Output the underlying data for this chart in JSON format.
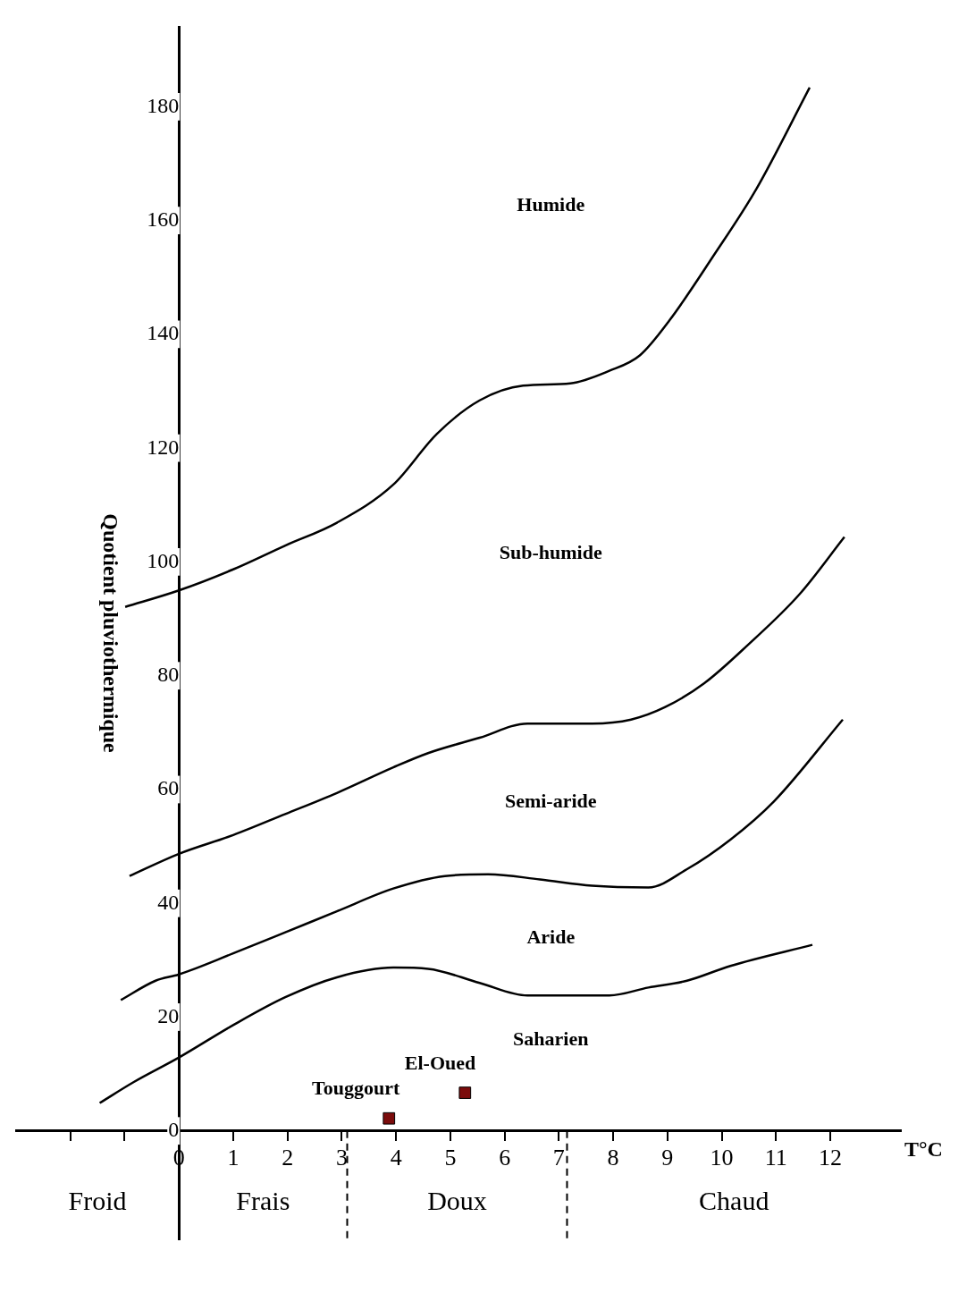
{
  "chart_data": {
    "type": "line",
    "xlabel": "T°C",
    "ylabel": "Quotient pluviothermique",
    "xlim": [
      -3,
      13.3
    ],
    "ylim": [
      -19,
      194
    ],
    "xticks": [
      {
        "value": -2,
        "label": null
      },
      {
        "value": -1,
        "label": null
      },
      0,
      1,
      2,
      3,
      4,
      5,
      6,
      7,
      8,
      9,
      10,
      11,
      12
    ],
    "yticks": [
      0,
      20,
      40,
      60,
      80,
      100,
      120,
      140,
      160,
      180
    ],
    "grid": false,
    "legend": false,
    "marker": "none",
    "line_style": "solid",
    "series": [
      {
        "color": "#000000",
        "x": [
          -0.99,
          0,
          1,
          1.96,
          2.91,
          3.95,
          4.75,
          5.54,
          6.34,
          7.21,
          7.93,
          8.49,
          9.04,
          9.84,
          10.64,
          11.62
        ],
        "values": [
          92.1,
          95,
          98.7,
          102.9,
          106.9,
          113.6,
          122.5,
          128.4,
          131,
          131.4,
          133.6,
          136.3,
          142.5,
          153.7,
          165.6,
          183.4
        ]
      },
      {
        "color": "#000000",
        "x": [
          -0.91,
          0,
          1,
          1.96,
          2.91,
          3.95,
          4.59,
          5.54,
          6.42,
          7.61,
          8.33,
          8.96,
          9.68,
          10.48,
          11.43,
          12.26
        ],
        "values": [
          44.8,
          48.7,
          52,
          55.7,
          59.4,
          63.9,
          66.4,
          69.1,
          71.6,
          71.6,
          72.3,
          74.5,
          78.7,
          85.4,
          94.3,
          104.4
        ]
      },
      {
        "color": "#000000",
        "x": [
          -1.07,
          -0.43,
          0,
          1,
          1.96,
          2.91,
          3.95,
          4.9,
          5.7,
          6.65,
          7.61,
          8.65,
          9.36,
          10.16,
          10.96,
          12.23
        ],
        "values": [
          23,
          26.4,
          27.5,
          31.2,
          34.9,
          38.6,
          42.6,
          44.8,
          45.1,
          44.2,
          43.1,
          42.8,
          46,
          51.2,
          57.9,
          72.3
        ]
      },
      {
        "color": "#000000",
        "x": [
          -1.46,
          -0.83,
          0,
          1,
          1.96,
          2.91,
          3.95,
          4.59,
          5.54,
          6.42,
          7.93,
          8.65,
          9.36,
          10.16,
          11.67
        ],
        "values": [
          4.9,
          8.6,
          12.9,
          18.6,
          23.5,
          27,
          28.7,
          28.5,
          26,
          23.8,
          23.8,
          25.2,
          26.4,
          29,
          32.7
        ]
      },
      {
        "type": "scatter",
        "name": "Touggourt",
        "color": "#7b0c0c",
        "marker": "square",
        "x": [
          3.87
        ],
        "values": [
          2.2
        ]
      },
      {
        "type": "scatter",
        "name": "El-Oued",
        "color": "#7b0c0c",
        "marker": "square",
        "x": [
          5.27
        ],
        "values": [
          6.7
        ]
      }
    ],
    "ref_lines": [
      {
        "axis": "x",
        "value": 3.1,
        "line_style": "dashed",
        "color": "#000000"
      },
      {
        "axis": "x",
        "value": 7.15,
        "line_style": "dashed",
        "color": "#000000"
      }
    ],
    "annotations": [
      "Humide",
      "Sub-humide",
      "Semi-aride",
      "Aride",
      "Saharien",
      "Froid",
      "Frais",
      "Doux",
      "Chaud"
    ]
  }
}
